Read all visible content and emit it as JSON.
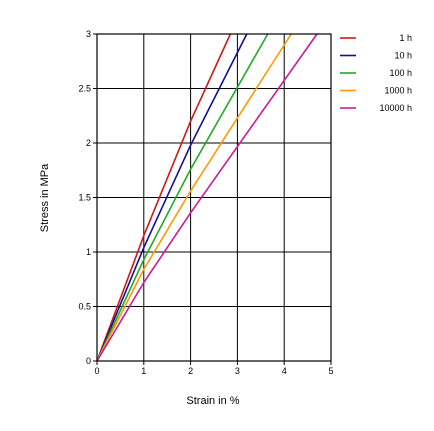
{
  "chart_data": {
    "type": "line",
    "title": "",
    "xlabel": "Strain in %",
    "ylabel": "Stress in MPa",
    "xlim": [
      0,
      5
    ],
    "ylim": [
      0,
      3
    ],
    "xticks": [
      0,
      1,
      2,
      3,
      4,
      5
    ],
    "yticks": [
      0,
      0.5,
      1,
      1.5,
      2,
      2.5,
      3
    ],
    "xtick_labels": [
      "0",
      "1",
      "2",
      "3",
      "4",
      "5"
    ],
    "ytick_labels": [
      "0",
      "0.5",
      "1",
      "1.5",
      "2",
      "2.5",
      "3"
    ],
    "grid": true,
    "legend_position": "right",
    "series": [
      {
        "name": "1 h",
        "color": "#d01818",
        "x": [
          0,
          1,
          2,
          2.85
        ],
        "y": [
          0,
          1.15,
          2.2,
          3.0
        ]
      },
      {
        "name": "10 h",
        "color": "#10109a",
        "x": [
          0,
          1,
          2,
          3.2
        ],
        "y": [
          0,
          1.04,
          1.98,
          3.0
        ]
      },
      {
        "name": "100 h",
        "color": "#22aa22",
        "x": [
          0,
          1,
          2,
          3.65
        ],
        "y": [
          0,
          0.93,
          1.76,
          3.0
        ]
      },
      {
        "name": "1000 h",
        "color": "#ff9900",
        "x": [
          0,
          1,
          2,
          4.15
        ],
        "y": [
          0,
          0.84,
          1.56,
          3.0
        ]
      },
      {
        "name": "10000 h",
        "color": "#cc1a99",
        "x": [
          0,
          1,
          2,
          4.7
        ],
        "y": [
          0,
          0.72,
          1.36,
          3.0
        ]
      }
    ]
  }
}
